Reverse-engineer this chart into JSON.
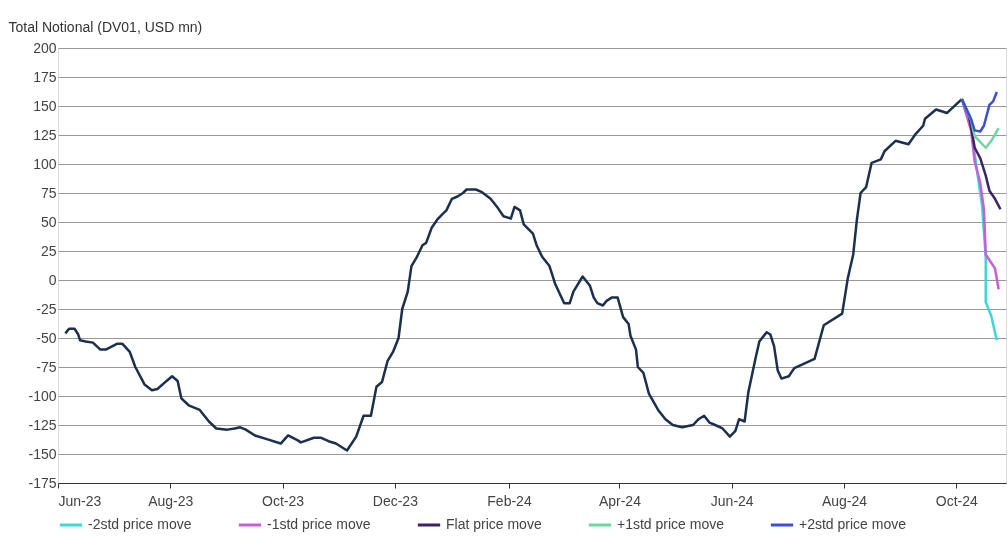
{
  "chart_data": {
    "type": "line",
    "ylabel": "Total Notional (DV01, USD mn)",
    "xlim": [
      "2023-06-01",
      "2024-10-28"
    ],
    "ylim": [
      -175,
      200
    ],
    "xticks": [
      {
        "value": "2023-06-01",
        "label": "Jun-23"
      },
      {
        "value": "2023-08-01",
        "label": "Aug-23"
      },
      {
        "value": "2023-10-01",
        "label": "Oct-23"
      },
      {
        "value": "2023-12-01",
        "label": "Dec-23"
      },
      {
        "value": "2024-02-01",
        "label": "Feb-24"
      },
      {
        "value": "2024-04-01",
        "label": "Apr-24"
      },
      {
        "value": "2024-06-01",
        "label": "Jun-24"
      },
      {
        "value": "2024-08-01",
        "label": "Aug-24"
      },
      {
        "value": "2024-10-01",
        "label": "Oct-24"
      }
    ],
    "yticks": [
      -175,
      -150,
      -125,
      -100,
      -75,
      -50,
      -25,
      0,
      25,
      50,
      75,
      100,
      125,
      150,
      175,
      200
    ],
    "grid": "y",
    "legend": "bottom",
    "marker": "none",
    "line_style": "solid",
    "series": [
      {
        "color": "#1b2f4e",
        "x": [
          "2023-06-05",
          "2023-06-07",
          "2023-06-10",
          "2023-06-12",
          "2023-06-13",
          "2023-06-16",
          "2023-06-20",
          "2023-06-24",
          "2023-06-27",
          "2023-07-03",
          "2023-07-06",
          "2023-07-10",
          "2023-07-13",
          "2023-07-18",
          "2023-07-22",
          "2023-07-25",
          "2023-07-30",
          "2023-08-02",
          "2023-08-05",
          "2023-08-07",
          "2023-08-11",
          "2023-08-17",
          "2023-08-22",
          "2023-08-26",
          "2023-09-01",
          "2023-09-05",
          "2023-09-08",
          "2023-09-11",
          "2023-09-16",
          "2023-09-22",
          "2023-09-30",
          "2023-10-04",
          "2023-10-09",
          "2023-10-11",
          "2023-10-18",
          "2023-10-22",
          "2023-10-26",
          "2023-10-30",
          "2023-11-05",
          "2023-11-10",
          "2023-11-14",
          "2023-11-18",
          "2023-11-21",
          "2023-11-24",
          "2023-11-27",
          "2023-11-30",
          "2023-12-03",
          "2023-12-05",
          "2023-12-08",
          "2023-12-10",
          "2023-12-13",
          "2023-12-16",
          "2023-12-18",
          "2023-12-21",
          "2023-12-24",
          "2023-12-27",
          "2023-12-29",
          "2024-01-01",
          "2024-01-04",
          "2024-01-07",
          "2024-01-09",
          "2024-01-14",
          "2024-01-17",
          "2024-01-22",
          "2024-01-26",
          "2024-01-29",
          "2024-02-02",
          "2024-02-04",
          "2024-02-07",
          "2024-02-09",
          "2024-02-14",
          "2024-02-16",
          "2024-02-19",
          "2024-02-23",
          "2024-02-26",
          "2024-02-28",
          "2024-03-02",
          "2024-03-05",
          "2024-03-07",
          "2024-03-12",
          "2024-03-16",
          "2024-03-18",
          "2024-03-20",
          "2024-03-23",
          "2024-03-25",
          "2024-03-28",
          "2024-03-31",
          "2024-04-03",
          "2024-04-06",
          "2024-04-07",
          "2024-04-10",
          "2024-04-11",
          "2024-04-14",
          "2024-04-17",
          "2024-04-22",
          "2024-04-26",
          "2024-04-30",
          "2024-05-05",
          "2024-05-11",
          "2024-05-14",
          "2024-05-17",
          "2024-05-20",
          "2024-05-23",
          "2024-05-27",
          "2024-05-31",
          "2024-06-03",
          "2024-06-05",
          "2024-06-08",
          "2024-06-10",
          "2024-06-14",
          "2024-06-16",
          "2024-06-20",
          "2024-06-22",
          "2024-06-24",
          "2024-06-26",
          "2024-06-28",
          "2024-07-02",
          "2024-07-05",
          "2024-07-16",
          "2024-07-21",
          "2024-07-31",
          "2024-08-03",
          "2024-08-06",
          "2024-08-08",
          "2024-08-10",
          "2024-08-13",
          "2024-08-16",
          "2024-08-21",
          "2024-08-23",
          "2024-08-29",
          "2024-09-05",
          "2024-09-09",
          "2024-09-13",
          "2024-09-14",
          "2024-09-20",
          "2024-09-26",
          "2024-10-04"
        ],
        "values": [
          -46,
          -42,
          -42,
          -47,
          -52,
          -53,
          -54,
          -60,
          -60,
          -55,
          -55,
          -62,
          -75,
          -90,
          -95,
          -94,
          -87,
          -83,
          -87,
          -102,
          -108,
          -112,
          -122,
          -128,
          -129,
          -128,
          -127,
          -129,
          -134,
          -137,
          -141,
          -134,
          -138,
          -140,
          -136,
          -136,
          -139,
          -141,
          -147,
          -135,
          -117,
          -117,
          -92,
          -88,
          -70,
          -62,
          -50,
          -25,
          -10,
          12,
          20,
          30,
          32,
          45,
          52,
          57,
          60,
          70,
          72,
          75,
          78,
          78,
          76,
          70,
          62,
          55,
          53,
          63,
          60,
          48,
          40,
          30,
          20,
          12,
          -3,
          -10,
          -20,
          -20,
          -10,
          3,
          -5,
          -15,
          -20,
          -22,
          -18,
          -15,
          -15,
          -32,
          -38,
          -48,
          -60,
          -75,
          -80,
          -98,
          -112,
          -120,
          -125,
          -127,
          -125,
          -120,
          -117,
          -123,
          -125,
          -128,
          -135,
          -130,
          -120,
          -122,
          -97,
          -67,
          -53,
          -45,
          -47,
          -57,
          -78,
          -85,
          -83,
          -76,
          -68,
          -39,
          -29,
          1,
          22,
          52,
          75,
          80,
          101,
          104,
          111,
          120,
          117,
          126,
          133,
          139,
          147,
          144,
          156
        ]
      },
      {
        "name": "-2std price move",
        "color": "#3fd6d6",
        "x": [
          "2024-10-04",
          "2024-10-09",
          "2024-10-12",
          "2024-10-15",
          "2024-10-17",
          "2024-10-17",
          "2024-10-20",
          "2024-10-23"
        ],
        "values": [
          156,
          132,
          97,
          64,
          19,
          -19,
          -31,
          -52
        ]
      },
      {
        "name": "-1std price move",
        "color": "#c55fd3",
        "x": [
          "2024-10-04",
          "2024-10-09",
          "2024-10-11",
          "2024-10-14",
          "2024-10-16",
          "2024-10-17",
          "2024-10-22",
          "2024-10-24"
        ],
        "values": [
          156,
          129,
          102,
          84,
          61,
          22,
          10,
          -8
        ]
      },
      {
        "name": "Flat price move",
        "color": "#3b2366",
        "x": [
          "2024-10-04",
          "2024-10-08",
          "2024-10-11",
          "2024-10-14",
          "2024-10-17",
          "2024-10-19",
          "2024-10-22",
          "2024-10-25"
        ],
        "values": [
          156,
          141,
          114,
          105,
          90,
          77,
          70,
          61
        ]
      },
      {
        "name": "+1std price move",
        "color": "#6fd6a0",
        "x": [
          "2024-10-04",
          "2024-10-09",
          "2024-10-11",
          "2024-10-17",
          "2024-10-20",
          "2024-10-24"
        ],
        "values": [
          156,
          138,
          124,
          114,
          120,
          131
        ]
      },
      {
        "name": "+2std price move",
        "color": "#3a4fd6",
        "x": [
          "2024-10-04",
          "2024-10-09",
          "2024-10-11",
          "2024-10-14",
          "2024-10-16",
          "2024-10-19",
          "2024-10-21",
          "2024-10-23"
        ],
        "values": [
          156,
          139,
          129,
          128,
          133,
          151,
          154,
          162
        ]
      }
    ]
  }
}
